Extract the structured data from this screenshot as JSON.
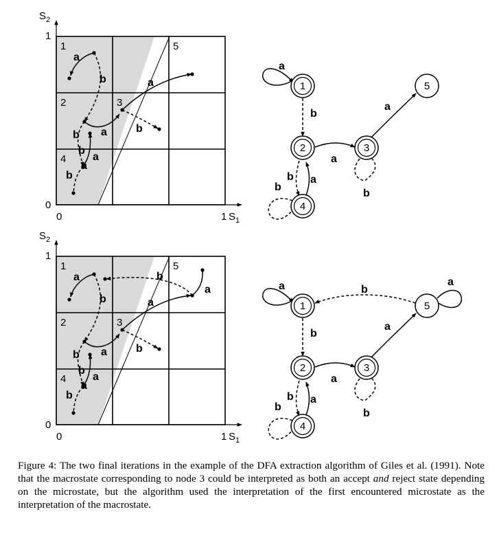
{
  "panels": [
    {
      "plot": {
        "y_axis_label": "S",
        "y_axis_sub": "2",
        "x_axis_label": "S",
        "x_axis_sub": "1",
        "origin_label": "0",
        "x_max_label": "1",
        "y_max_label": "1",
        "region_labels": [
          "1",
          "2",
          "3",
          "4",
          "5"
        ],
        "transition_labels": [
          "a",
          "b",
          "a",
          "b",
          "a",
          "b",
          "b",
          "a",
          "a",
          "b"
        ]
      },
      "graph": {
        "nodes": [
          {
            "label": "1",
            "accepting": true
          },
          {
            "label": "2",
            "accepting": true
          },
          {
            "label": "3",
            "accepting": true
          },
          {
            "label": "4",
            "accepting": true
          },
          {
            "label": "5",
            "accepting": false
          }
        ],
        "edge_labels": [
          "a",
          "b",
          "a",
          "a",
          "b",
          "b",
          "a",
          "b"
        ]
      }
    },
    {
      "plot": {
        "y_axis_label": "S",
        "y_axis_sub": "2",
        "x_axis_label": "S",
        "x_axis_sub": "1",
        "origin_label": "0",
        "x_max_label": "1",
        "y_max_label": "1",
        "region_labels": [
          "1",
          "2",
          "3",
          "4",
          "5"
        ],
        "transition_labels": [
          "a",
          "b",
          "a",
          "b",
          "a",
          "b",
          "b",
          "a",
          "a",
          "b",
          "b",
          "a"
        ]
      },
      "graph": {
        "nodes": [
          {
            "label": "1",
            "accepting": true
          },
          {
            "label": "2",
            "accepting": true
          },
          {
            "label": "3",
            "accepting": true
          },
          {
            "label": "4",
            "accepting": true
          },
          {
            "label": "5",
            "accepting": false
          }
        ],
        "edge_labels": [
          "a",
          "b",
          "b",
          "a",
          "a",
          "a",
          "b",
          "b",
          "a",
          "b"
        ]
      }
    }
  ],
  "caption": {
    "prefix": "Figure 4:  The two final iterations in the example of the DFA extraction algorithm of Giles et al. (1991). Note that the macrostate corresponding to node 3 could be interpreted as both an accept ",
    "emphasis": "and",
    "suffix": " reject state depending on the microstate, but the algorithm used the interpretation of the first encountered microstate as the interpretation of the macrostate."
  }
}
